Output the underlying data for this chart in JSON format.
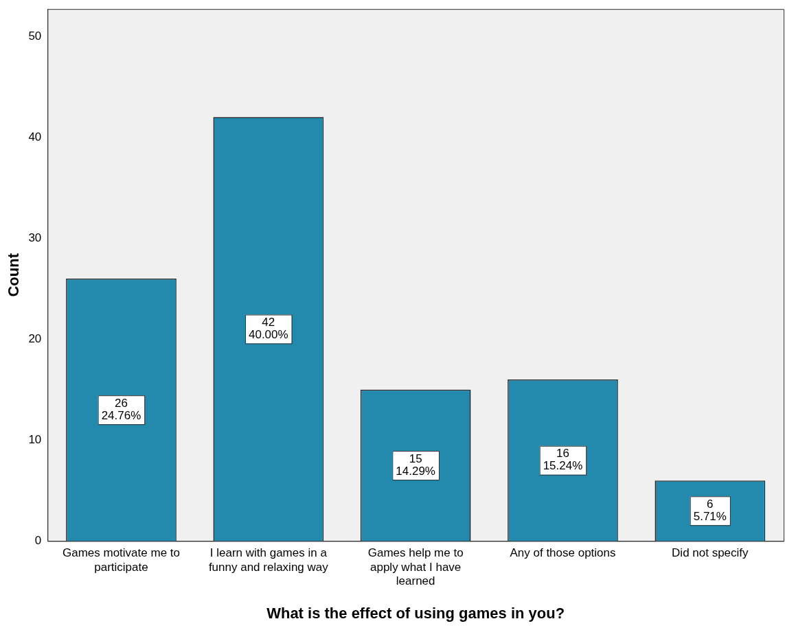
{
  "chart_data": {
    "type": "bar",
    "xlabel": "What is the effect of using games in you?",
    "ylabel": "Count",
    "categories": [
      "Games motivate me to participate",
      "I learn with games in a funny and relaxing way",
      "Games help me to apply what I have learned",
      "Any of those options",
      "Did not specify"
    ],
    "values": [
      26,
      42,
      15,
      16,
      6
    ],
    "value_labels": [
      "26\n24.76%",
      "42\n40.00%",
      "15\n14.29%",
      "16\n15.24%",
      "6\n5.71%"
    ],
    "color": "#2389ad",
    "ylim": [
      0,
      52.7
    ],
    "yticks": [
      0,
      10,
      20,
      30,
      40,
      50
    ],
    "grid": false,
    "legend": false
  }
}
